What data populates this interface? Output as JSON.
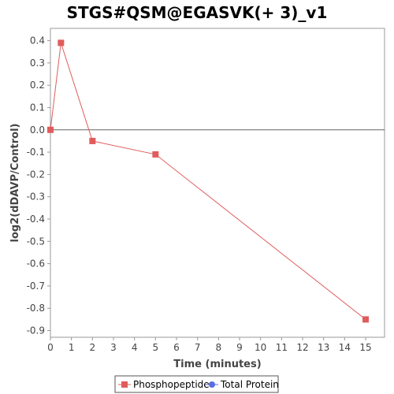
{
  "chart_data": {
    "type": "line",
    "title": "STGS#QSM@EGASVK(+ 3)_v1",
    "xlabel": "Time (minutes)",
    "ylabel": "log2(dDAVP/Control)",
    "xlim": [
      0,
      15.9
    ],
    "ylim": [
      -0.93,
      0.455
    ],
    "xticks": [
      0,
      1,
      2,
      3,
      4,
      5,
      6,
      7,
      8,
      9,
      10,
      11,
      12,
      13,
      14,
      15
    ],
    "yticks": [
      0.4,
      0.3,
      0.2,
      0.1,
      0.0,
      -0.1,
      -0.2,
      -0.3,
      -0.4,
      -0.5,
      -0.6,
      -0.7,
      -0.8,
      -0.9
    ],
    "ytick_labels": [
      "0.4",
      "0.3",
      "0.2",
      "0.1",
      "0.0",
      "-0.1",
      "-0.2",
      "-0.3",
      "-0.4",
      "-0.5",
      "-0.6",
      "-0.7",
      "-0.8",
      "-0.9"
    ],
    "grid": false,
    "zero_line": true,
    "legend_position": "bottom",
    "series": [
      {
        "name": "Phosphopeptide",
        "color": "#e05c5c",
        "marker": "square",
        "x": [
          0,
          0.5,
          2,
          5,
          15
        ],
        "y": [
          0.0,
          0.39,
          -0.05,
          -0.11,
          -0.85
        ]
      },
      {
        "name": "Total Protein",
        "color": "#5b6ee0",
        "marker": "circle",
        "x": [],
        "y": []
      }
    ]
  }
}
